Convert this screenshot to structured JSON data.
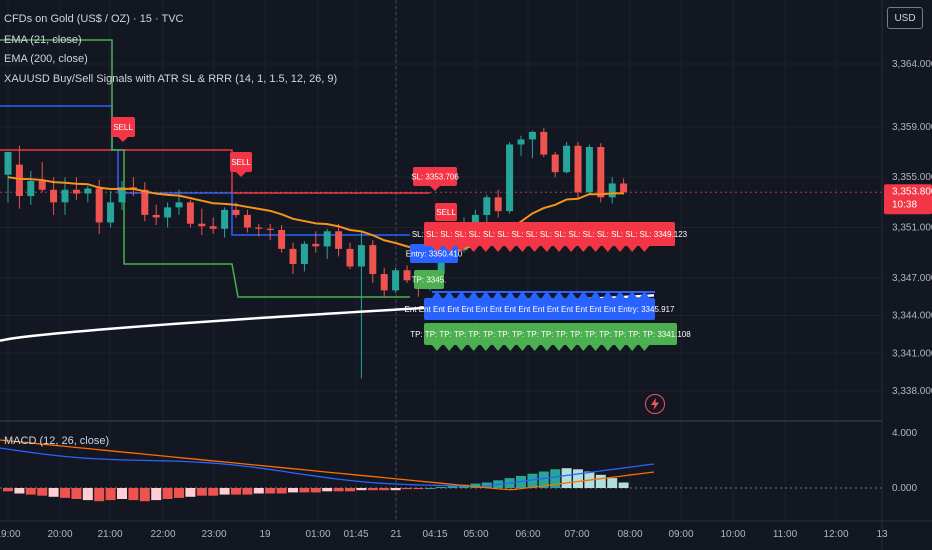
{
  "header": {
    "symbol_line": "CFDs on Gold (US$ / OZ) · 15 · TVC",
    "ema1": "EMA (21, close)",
    "ema2": "EMA (200, close)",
    "indicator": "XAUUSD Buy/Sell Signals with ATR SL & RRR (14, 1, 1.5, 12, 26, 9)",
    "macd": "MACD (12, 26, close)"
  },
  "currency_button": "USD",
  "price_axis": {
    "ticks": [
      "3,364.000",
      "3,359.000",
      "3,355.000",
      "3,351.000",
      "3,347.000",
      "3,344.000",
      "3,341.000",
      "3,338.000"
    ],
    "last_price": "3,353.800",
    "countdown": "10:38"
  },
  "macd_axis": {
    "ticks": [
      "4.000",
      "0.000"
    ]
  },
  "time_axis": [
    "19:00",
    "20:00",
    "21:00",
    "22:00",
    "23:00",
    "19",
    "01:00",
    "01:45",
    "21",
    "04:15",
    "05:00",
    "06:00",
    "07:00",
    "08:00",
    "09:00",
    "10:00",
    "11:00",
    "12:00",
    "13"
  ],
  "labels": {
    "sell1": "SELL",
    "sell2": "SELL",
    "sell3": "SELL",
    "sl": "SL: 3353.706",
    "entry": "Entry: 3350.410",
    "tp": "TP: 3345.",
    "sl_row": "SL: SL: SL: SL: SL: SL: SL: SL: SL: SL: SL: SL: SL: SL: SL: SL: SL: 3349.123",
    "entry_row": "Ent Ent Ent Ent Ent Ent Ent Ent Ent Ent Ent Ent Ent Ent Ent Entry: 3345.917",
    "tp_row": "TP: TP: TP: TP: TP: TP: TP: TP: TP: TP: TP: TP: TP: TP: TP: TP: TP: 3341.108"
  },
  "colors": {
    "background": "#131722",
    "bull": "#26a69a",
    "bear": "#ef5350",
    "ema21": "#f7931a",
    "ema200": "#ffffff",
    "sl_line": "#f23645",
    "entry_line": "#2962ff",
    "tp_line": "#4caf50",
    "macd_line": "#2962ff",
    "signal_line": "#ff6d00"
  },
  "candles": [
    {
      "o": 3355.2,
      "h": 3357.0,
      "l": 3353.0,
      "c": 3357.0
    },
    {
      "o": 3356.0,
      "h": 3357.5,
      "l": 3352.5,
      "c": 3353.5
    },
    {
      "o": 3353.5,
      "h": 3355.5,
      "l": 3352.8,
      "c": 3354.7
    },
    {
      "o": 3354.7,
      "h": 3356.2,
      "l": 3353.8,
      "c": 3354.0
    },
    {
      "o": 3354.0,
      "h": 3355.0,
      "l": 3352.0,
      "c": 3353.0
    },
    {
      "o": 3353.0,
      "h": 3355.0,
      "l": 3352.0,
      "c": 3354.0
    },
    {
      "o": 3354.0,
      "h": 3355.0,
      "l": 3353.2,
      "c": 3353.7
    },
    {
      "o": 3353.7,
      "h": 3354.3,
      "l": 3353.0,
      "c": 3354.1
    },
    {
      "o": 3354.1,
      "h": 3354.8,
      "l": 3350.5,
      "c": 3351.4
    },
    {
      "o": 3351.4,
      "h": 3353.9,
      "l": 3351.0,
      "c": 3353.0
    },
    {
      "o": 3353.0,
      "h": 3354.7,
      "l": 3352.4,
      "c": 3354.2
    },
    {
      "o": 3354.2,
      "h": 3355.0,
      "l": 3353.5,
      "c": 3354.0
    },
    {
      "o": 3354.0,
      "h": 3354.6,
      "l": 3351.5,
      "c": 3352.0
    },
    {
      "o": 3352.0,
      "h": 3352.8,
      "l": 3351.2,
      "c": 3351.8
    },
    {
      "o": 3351.8,
      "h": 3353.0,
      "l": 3351.0,
      "c": 3352.6
    },
    {
      "o": 3352.6,
      "h": 3354.0,
      "l": 3352.0,
      "c": 3353.0
    },
    {
      "o": 3353.0,
      "h": 3353.2,
      "l": 3351.0,
      "c": 3351.3
    },
    {
      "o": 3351.3,
      "h": 3352.5,
      "l": 3350.4,
      "c": 3351.1
    },
    {
      "o": 3351.1,
      "h": 3351.8,
      "l": 3350.5,
      "c": 3350.9
    },
    {
      "o": 3350.9,
      "h": 3352.6,
      "l": 3350.2,
      "c": 3352.4
    },
    {
      "o": 3352.4,
      "h": 3353.0,
      "l": 3351.8,
      "c": 3352.0
    },
    {
      "o": 3352.0,
      "h": 3352.4,
      "l": 3350.6,
      "c": 3351.0
    },
    {
      "o": 3351.0,
      "h": 3351.3,
      "l": 3350.3,
      "c": 3350.9
    },
    {
      "o": 3350.9,
      "h": 3351.3,
      "l": 3350.0,
      "c": 3350.8
    },
    {
      "o": 3350.8,
      "h": 3351.2,
      "l": 3349.0,
      "c": 3349.3
    },
    {
      "o": 3349.3,
      "h": 3349.8,
      "l": 3347.3,
      "c": 3348.1
    },
    {
      "o": 3348.1,
      "h": 3349.9,
      "l": 3347.5,
      "c": 3349.7
    },
    {
      "o": 3349.7,
      "h": 3350.7,
      "l": 3349.0,
      "c": 3349.5
    },
    {
      "o": 3349.5,
      "h": 3350.9,
      "l": 3348.5,
      "c": 3350.7
    },
    {
      "o": 3350.7,
      "h": 3351.3,
      "l": 3348.7,
      "c": 3349.3
    },
    {
      "o": 3349.3,
      "h": 3349.8,
      "l": 3347.7,
      "c": 3347.9
    },
    {
      "o": 3347.9,
      "h": 3350.6,
      "l": 3339.0,
      "c": 3349.6
    },
    {
      "o": 3349.6,
      "h": 3350.0,
      "l": 3346.6,
      "c": 3347.3
    },
    {
      "o": 3347.3,
      "h": 3347.8,
      "l": 3345.4,
      "c": 3346.0
    },
    {
      "o": 3346.0,
      "h": 3347.8,
      "l": 3345.8,
      "c": 3347.6
    },
    {
      "o": 3347.6,
      "h": 3348.0,
      "l": 3346.6,
      "c": 3346.8
    },
    {
      "o": 3346.8,
      "h": 3347.2,
      "l": 3345.5,
      "c": 3346.5
    },
    {
      "o": 3346.5,
      "h": 3347.5,
      "l": 3346.0,
      "c": 3347.3
    },
    {
      "o": 3347.3,
      "h": 3350.0,
      "l": 3347.0,
      "c": 3349.8
    },
    {
      "o": 3349.8,
      "h": 3350.4,
      "l": 3348.9,
      "c": 3349.2
    },
    {
      "o": 3349.2,
      "h": 3351.8,
      "l": 3349.0,
      "c": 3351.4
    },
    {
      "o": 3351.4,
      "h": 3352.4,
      "l": 3350.5,
      "c": 3352.0
    },
    {
      "o": 3352.0,
      "h": 3353.6,
      "l": 3351.2,
      "c": 3353.4
    },
    {
      "o": 3353.4,
      "h": 3354.0,
      "l": 3351.8,
      "c": 3352.3
    },
    {
      "o": 3352.3,
      "h": 3357.8,
      "l": 3352.1,
      "c": 3357.6
    },
    {
      "o": 3357.6,
      "h": 3358.3,
      "l": 3356.7,
      "c": 3358.0
    },
    {
      "o": 3358.0,
      "h": 3358.7,
      "l": 3356.5,
      "c": 3358.6
    },
    {
      "o": 3358.6,
      "h": 3358.9,
      "l": 3356.6,
      "c": 3356.8
    },
    {
      "o": 3356.8,
      "h": 3357.0,
      "l": 3355.0,
      "c": 3355.4
    },
    {
      "o": 3355.4,
      "h": 3357.8,
      "l": 3355.3,
      "c": 3357.5
    },
    {
      "o": 3357.5,
      "h": 3357.8,
      "l": 3353.3,
      "c": 3353.8
    },
    {
      "o": 3353.8,
      "h": 3357.6,
      "l": 3353.6,
      "c": 3357.4
    },
    {
      "o": 3357.4,
      "h": 3357.7,
      "l": 3353.0,
      "c": 3353.4
    },
    {
      "o": 3353.4,
      "h": 3355.0,
      "l": 3352.9,
      "c": 3354.5
    },
    {
      "o": 3354.5,
      "h": 3354.9,
      "l": 3353.6,
      "c": 3353.8
    }
  ]
}
